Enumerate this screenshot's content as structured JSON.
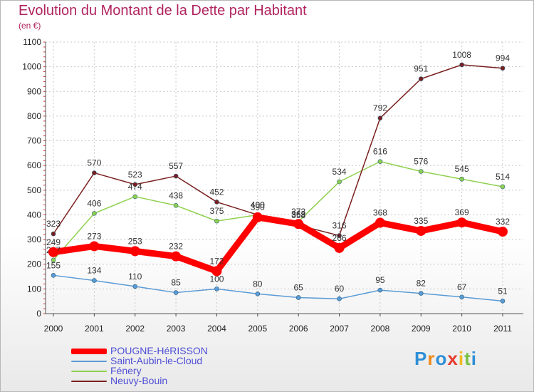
{
  "title": "Evolution du Montant de la Dette par Habitant",
  "unit": "(en €)",
  "logo_text": "Proxiti",
  "colors": {
    "title": "#b0245f",
    "grid": "#c8c8c8",
    "pougne": "#ff0000",
    "saint_aubin": "#5b9bd5",
    "fenery": "#8fd14f",
    "neuvy": "#7a1f1f"
  },
  "chart_data": {
    "type": "line",
    "x": [
      "2000",
      "2001",
      "2002",
      "2003",
      "2004",
      "2005",
      "2006",
      "2007",
      "2008",
      "2009",
      "2010",
      "2011"
    ],
    "ylim": [
      0,
      1100
    ],
    "yticks": [
      0,
      100,
      200,
      300,
      400,
      500,
      600,
      700,
      800,
      900,
      1000,
      1100
    ],
    "grid": true,
    "legend_position": "bottom-left",
    "series": [
      {
        "name": "POUGNE-HéRISSON",
        "color": "#ff0000",
        "width": 9,
        "values": [
          249,
          273,
          253,
          232,
          172,
          390,
          363,
          266,
          368,
          335,
          369,
          332
        ]
      },
      {
        "name": "Saint-Aubin-le-Cloud",
        "color": "#5b9bd5",
        "width": 1.5,
        "values": [
          155,
          134,
          110,
          85,
          100,
          80,
          65,
          60,
          95,
          82,
          67,
          51
        ]
      },
      {
        "name": "Fénery",
        "color": "#8fd14f",
        "width": 1.5,
        "values": [
          217,
          406,
          474,
          438,
          375,
          400,
          373,
          534,
          616,
          576,
          545,
          514
        ]
      },
      {
        "name": "Neuvy-Bouin",
        "color": "#7a1f1f",
        "width": 1.5,
        "values": [
          323,
          570,
          523,
          557,
          452,
          400,
          358,
          316,
          792,
          951,
          1008,
          994
        ]
      }
    ]
  }
}
